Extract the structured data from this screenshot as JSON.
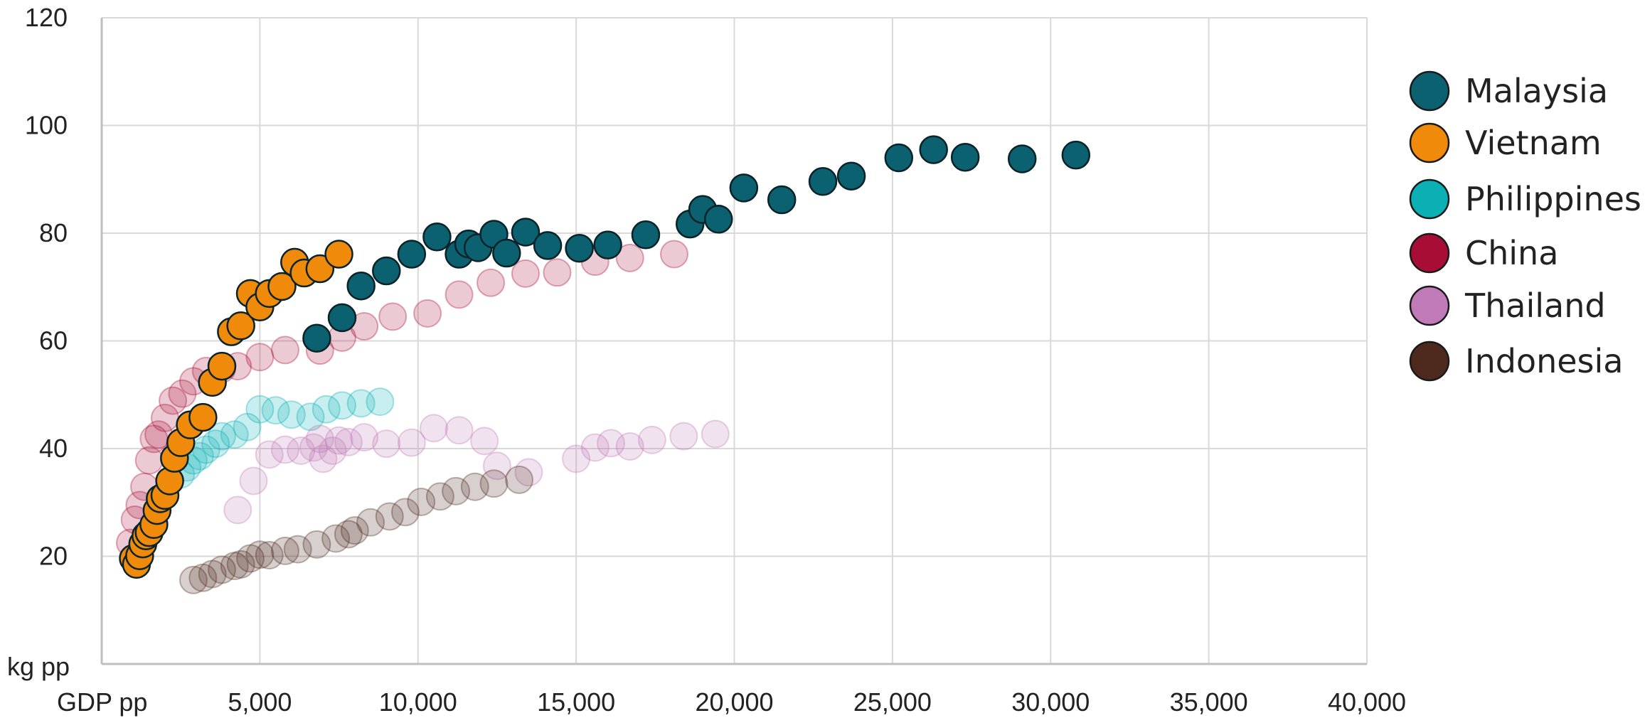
{
  "chart_data": {
    "type": "scatter",
    "xlabel": "GDP pp",
    "ylabel": "kg pp",
    "xlim": [
      0,
      40000
    ],
    "ylim": [
      0,
      120
    ],
    "x_ticks": [
      5000,
      10000,
      15000,
      20000,
      25000,
      30000,
      35000,
      40000
    ],
    "x_tick_labels": [
      "5,000",
      "10,000",
      "15,000",
      "20,000",
      "25,000",
      "30,000",
      "35,000",
      "40,000"
    ],
    "y_ticks": [
      20,
      40,
      60,
      80,
      100,
      120
    ],
    "y_tick_labels": [
      "20",
      "40",
      "60",
      "80",
      "100",
      "120"
    ],
    "grid": true,
    "legend_position": "right",
    "series": [
      {
        "name": "Malaysia",
        "color": "#0b6170",
        "highlighted": true,
        "points": [
          [
            6800,
            60.5
          ],
          [
            7600,
            64.3
          ],
          [
            8200,
            70.2
          ],
          [
            9000,
            73
          ],
          [
            9800,
            76.1
          ],
          [
            10600,
            79.3
          ],
          [
            11300,
            76.1
          ],
          [
            11600,
            78
          ],
          [
            11900,
            77.3
          ],
          [
            12400,
            79.8
          ],
          [
            12800,
            76.3
          ],
          [
            13400,
            80.2
          ],
          [
            14100,
            77.7
          ],
          [
            15100,
            77.2
          ],
          [
            16000,
            77.8
          ],
          [
            17200,
            79.7
          ],
          [
            18600,
            81.7
          ],
          [
            19000,
            84.4
          ],
          [
            19500,
            82.6
          ],
          [
            20300,
            88.4
          ],
          [
            21500,
            86.2
          ],
          [
            22800,
            89.6
          ],
          [
            23700,
            90.6
          ],
          [
            25200,
            94
          ],
          [
            26300,
            95.5
          ],
          [
            27300,
            94.1
          ],
          [
            29100,
            93.8
          ],
          [
            30800,
            94.5
          ]
        ]
      },
      {
        "name": "Vietnam",
        "color": "#f08a0b",
        "highlighted": true,
        "points": [
          [
            1000,
            19.6
          ],
          [
            1100,
            18.5
          ],
          [
            1200,
            20.1
          ],
          [
            1300,
            22.3
          ],
          [
            1400,
            23.8
          ],
          [
            1500,
            24.4
          ],
          [
            1650,
            25.9
          ],
          [
            1750,
            28.5
          ],
          [
            1850,
            30.7
          ],
          [
            2000,
            31.3
          ],
          [
            2150,
            34
          ],
          [
            2300,
            38.2
          ],
          [
            2500,
            41.1
          ],
          [
            2800,
            44.4
          ],
          [
            3200,
            45.8
          ],
          [
            3500,
            52.3
          ],
          [
            3800,
            55.3
          ],
          [
            4100,
            61.7
          ],
          [
            4400,
            62.8
          ],
          [
            4700,
            68.8
          ],
          [
            5000,
            66.3
          ],
          [
            5300,
            68.8
          ],
          [
            5700,
            70.1
          ],
          [
            6100,
            74.6
          ],
          [
            6400,
            72.6
          ],
          [
            6900,
            73.4
          ],
          [
            7500,
            76.1
          ]
        ]
      },
      {
        "name": "Philippines",
        "color": "#0bb0b5",
        "highlighted": false,
        "points": [
          [
            2500,
            35.2
          ],
          [
            2700,
            36.5
          ],
          [
            2900,
            37.8
          ],
          [
            3100,
            38.6
          ],
          [
            3300,
            39.8
          ],
          [
            3600,
            40.9
          ],
          [
            3800,
            42.3
          ],
          [
            4200,
            42.6
          ],
          [
            4600,
            44
          ],
          [
            5000,
            47.3
          ],
          [
            5500,
            47.1
          ],
          [
            6000,
            46.3
          ],
          [
            6600,
            45.9
          ],
          [
            7100,
            47.3
          ],
          [
            7600,
            48
          ],
          [
            8200,
            48.4
          ],
          [
            8800,
            48.7
          ]
        ]
      },
      {
        "name": "China",
        "color": "#a80d35",
        "highlighted": false,
        "points": [
          [
            900,
            22.5
          ],
          [
            1050,
            26.8
          ],
          [
            1200,
            29.5
          ],
          [
            1350,
            32.9
          ],
          [
            1500,
            37.8
          ],
          [
            1650,
            41.8
          ],
          [
            1800,
            42.6
          ],
          [
            2000,
            45.7
          ],
          [
            2250,
            48.9
          ],
          [
            2550,
            50.2
          ],
          [
            2900,
            52.5
          ],
          [
            3300,
            54.4
          ],
          [
            3800,
            54.8
          ],
          [
            4300,
            55.3
          ],
          [
            5000,
            57
          ],
          [
            5800,
            58.3
          ],
          [
            6900,
            58.2
          ],
          [
            7600,
            60.6
          ],
          [
            8300,
            62.7
          ],
          [
            9200,
            64.5
          ],
          [
            10300,
            65.1
          ],
          [
            11300,
            68.6
          ],
          [
            12300,
            70.8
          ],
          [
            13400,
            72.5
          ],
          [
            14400,
            72.7
          ],
          [
            15600,
            74.7
          ],
          [
            16700,
            75.4
          ],
          [
            18100,
            76.1
          ]
        ]
      },
      {
        "name": "Thailand",
        "color": "#c07ab8",
        "highlighted": false,
        "points": [
          [
            4300,
            28.6
          ],
          [
            4800,
            34
          ],
          [
            5300,
            38.9
          ],
          [
            5800,
            39.8
          ],
          [
            6300,
            39.6
          ],
          [
            6700,
            40.2
          ],
          [
            6900,
            41.8
          ],
          [
            7000,
            38.1
          ],
          [
            7300,
            39.6
          ],
          [
            7500,
            41.5
          ],
          [
            7800,
            41.2
          ],
          [
            8300,
            42.1
          ],
          [
            9000,
            40.9
          ],
          [
            9800,
            41.1
          ],
          [
            10500,
            43.8
          ],
          [
            11300,
            43.4
          ],
          [
            12100,
            41.4
          ],
          [
            12500,
            36.8
          ],
          [
            13500,
            35.6
          ],
          [
            15000,
            38.1
          ],
          [
            15600,
            40.2
          ],
          [
            16100,
            41
          ],
          [
            16700,
            40.4
          ],
          [
            17400,
            41.6
          ],
          [
            18400,
            42.3
          ],
          [
            19400,
            42.7
          ]
        ]
      },
      {
        "name": "Indonesia",
        "color": "#4e2a1e",
        "highlighted": false,
        "points": [
          [
            2900,
            15.6
          ],
          [
            3200,
            16
          ],
          [
            3500,
            16.7
          ],
          [
            3800,
            17.5
          ],
          [
            4200,
            18.2
          ],
          [
            4400,
            18.5
          ],
          [
            4700,
            19.6
          ],
          [
            5000,
            20.3
          ],
          [
            5300,
            20.2
          ],
          [
            5800,
            21
          ],
          [
            6200,
            21.3
          ],
          [
            6800,
            22.2
          ],
          [
            7400,
            23.3
          ],
          [
            7800,
            24.1
          ],
          [
            8000,
            24.8
          ],
          [
            8500,
            26.3
          ],
          [
            9100,
            27.4
          ],
          [
            9600,
            28.2
          ],
          [
            10100,
            30.1
          ],
          [
            10700,
            31.1
          ],
          [
            11200,
            32.1
          ],
          [
            11800,
            32.9
          ],
          [
            12400,
            33.5
          ],
          [
            13200,
            34.2
          ]
        ]
      }
    ]
  }
}
